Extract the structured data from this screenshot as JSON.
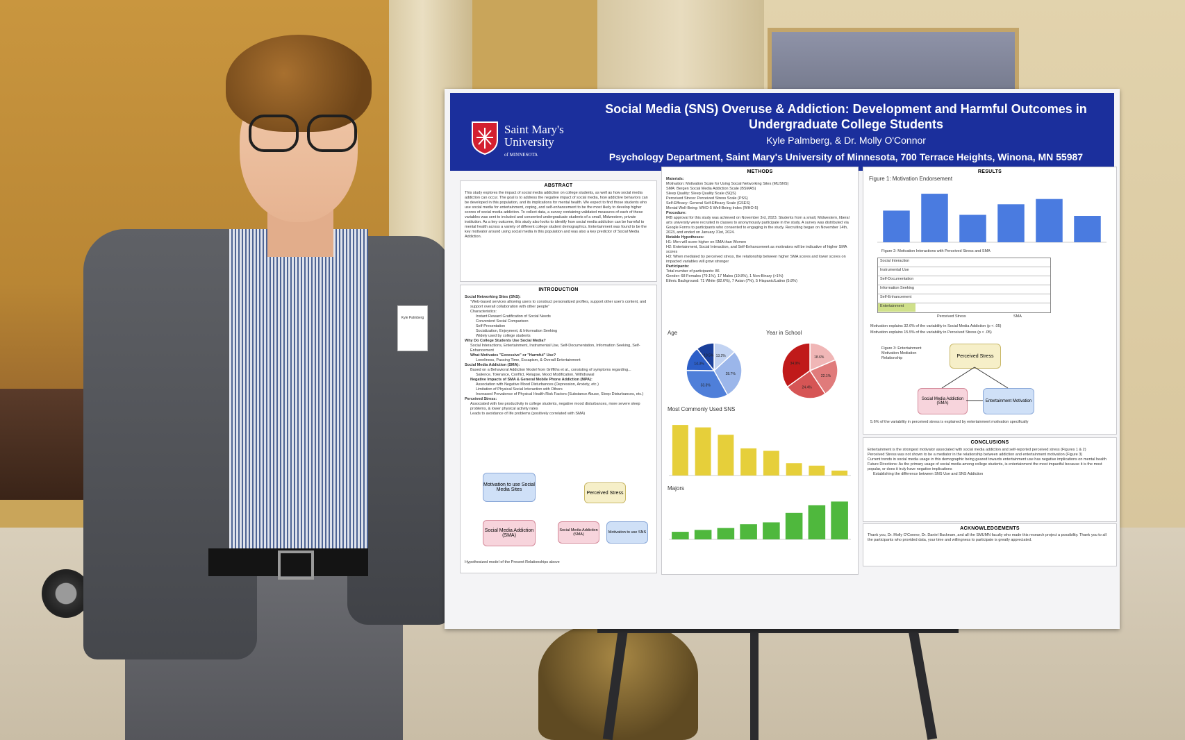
{
  "poster": {
    "title": "Social Media (SNS) Overuse & Addiction: Development and Harmful Outcomes in Undergraduate College Students",
    "authors": "Kyle Palmberg, & Dr. Molly O'Connor",
    "department": "Psychology Department, Saint Mary's University of Minnesota, 700 Terrace Heights, Winona, MN 55987",
    "logo_name_line1": "Saint Mary's",
    "logo_name_line2": "University",
    "logo_name_line3": "of MINNESOTA",
    "abstract": {
      "heading": "ABSTRACT",
      "text": "This study explores the impact of social media addiction on college students, as well as how social media addiction can occur. The goal is to address the negative impact of social media, how addictive behaviors can be developed in this population, and its implications for mental health. We expect to find those students who use social media for entertainment, coping, and self-enhancement to be the most likely to develop higher scores of social media addiction. To collect data, a survey containing validated measures of each of these variables was sent to included and consented undergraduate students of a small, Midwestern, private institution. As a key outcome, this study also looks to identify how social media addiction can be harmful to mental health across a variety of different college student demographics. Entertainment was found to be the key motivator around using social media in this population and was also a key predictor of Social Media Addiction."
    },
    "introduction": {
      "heading": "INTRODUCTION",
      "lines": [
        "Social Networking Sites (SNS):",
        "\"Web-based services allowing users to construct personalized profiles, support other user's content, and support overall collaboration with other people\"",
        "Characteristics:",
        "Instant Reward Gratification of Social Needs",
        "Convenient Social Comparison",
        "Self-Presentation",
        "Socialization, Enjoyment, & Information Seeking",
        "Widely used by college students",
        "Why Do College Students Use Social Media?",
        "Social Interactions, Entertainment, Instrumental Use, Self-Documentation, Information Seeking, Self-Enhancement",
        "What Motivates \"Excessive\" or \"Harmful\" Use?",
        "Loneliness, Passing Time, Escapism, & Overall Entertainment",
        "Social Media Addiction (SMA):",
        "Based on a Behavioral Addiction Model from Griffiths et al., consisting of symptoms regarding...",
        "Salience, Tolerance, Conflict, Relapse, Mood Modification, Withdrawal",
        "Negative Impacts of SMA & General Mobile Phone Addiction (MPA):",
        "Association with Negative Mood Disturbances (Depression, Anxiety, etc.)",
        "Limitation of Physical Social Interaction with Others",
        "Increased Prevalence of Physical Health Risk Factors (Substance Abuse, Sleep Disturbances, etc.)",
        "Perceived Stress:",
        "Associated with low productivity in college students, negative mood disturbances, more severe sleep problems, & lower physical activity rates",
        "Leads to avoidance of life problems (positively correlated with SMA)"
      ],
      "diagram": {
        "motivation": "Motivation to use Social Media Sites",
        "addiction": "Social Media Addiction (SMA)",
        "perceived_stress": "Perceived Stress",
        "sma": "Social Media Addiction (SMA)",
        "motivation_sns": "Motivation to use SNS"
      },
      "caption": "Hypothesized model of the Present Relationships above"
    },
    "methods": {
      "heading": "METHODS",
      "lines": [
        "Materials:",
        "Motivation: Motivation Scale for Using Social Networking Sites (MUSNS)",
        "SMA: Bergen Social Media Addiction Scale (BSMAS)",
        "Sleep Quality: Sleep Quality Scale (SQS)",
        "Perceived Stress: Perceived Stress Scale (PSS)",
        "Self-Efficacy: General Self-Efficacy Scale (GSES)",
        "Mental Well-Being: WHO-5 Well-Being Index (WHO-5)",
        "Procedure:",
        "IRB approval for this study was achieved on November 3rd, 2023. Students from a small, Midwestern, liberal arts university were recruited in classes to anonymously participate in the study. A survey was distributed via Google Forms to participants who consented to engaging in the study. Recruiting began on November 14th, 2023, and ended on January 31st, 2024.",
        "Notable Hypotheses:",
        "H1: Men will score higher on SMA than Women",
        "H2: Entertainment, Social Interaction, and Self-Enhancement as motivators will be indicative of higher SMA scores",
        "H3: When mediated by perceived stress, the relationship between higher SMA scores and lower scores on impacted variables will grow stronger",
        "Participants:",
        "Total number of participants: 86",
        "Gender: 68 Females (79.1%), 17 Males (19.8%), 1 Non-Binary (>1%)",
        "Ethnic Background: 71 White (82.6%), 7 Asian (7%), 5 Hispanic/Latino (5.8%)"
      ],
      "age_label": "Age",
      "school_label": "Year in School",
      "sns_label": "Most Commonly Used SNS",
      "majors_label": "Majors"
    },
    "results": {
      "heading": "RESULTS",
      "fig1": "Figure 1: Motivation Endorsement",
      "fig2": "Figure 2: Motivation Interactions with Perceived Stress and SMA",
      "note1": "Motivation explains 32.6% of the variability in Social Media Addiction (p < .05)",
      "note2": "Motivation explains 15.5% of the variability in Perceived Stress (p < .05)",
      "fig3_label": "Figure 3: Entertainment Motivation Mediation Relationship",
      "perceived_stress": "Perceived Stress",
      "sma": "Social Media Addiction (SMA)",
      "entertainment": "Entertainment Motivation",
      "note3": "5.6% of the variability in perceived stress is explained by entertainment motivation specifically",
      "table_rows": [
        "Social Interaction",
        "Instrumental Use",
        "Self-Documentation",
        "Information Seeking",
        "Self-Enhancement",
        "Entertainment"
      ],
      "brace_left": "Perceived Stress",
      "brace_right": "SMA"
    },
    "conclusions": {
      "heading": "CONCLUSIONS",
      "lines": [
        "Entertainment is the strongest motivator associated with social media addiction and self-reported perceived stress (Figures 1 & 2)",
        "Perceived Stress was not shown to be a mediator in the relationship between addiction and entertainment motivation (Figure 3)",
        "Current trends in social media usage in this demographic being geared towards entertainment use has negative implications on mental health",
        "Future Directions: As the primary usage of social media among college students, is entertainment the most impactful because it is the most popular, or does it truly have negative implications",
        "Establishing the difference between SNS Use and SNS Addiction"
      ]
    },
    "acknowledgements": {
      "heading": "ACKNOWLEDGEMENTS",
      "text": "Thank you, Dr. Molly O'Connor, Dr. Daniel Bucknam, and all the SMUMN faculty who made this research project a possibility. Thank you to all the participants who provided data, your time and willingness to participate is greatly appreciated."
    },
    "colors": {
      "banner": "#1b2f9c",
      "fig1_bars": "#4a7be0",
      "sns_bars": "#e6cf3a",
      "majors_bars": "#4fb83d",
      "logo_red": "#d42030"
    }
  },
  "name_tag": "Kyle Palmberg",
  "chart_data": [
    {
      "type": "bar",
      "title": "Figure 1: Motivation Endorsement",
      "values": [
        3.0,
        4.6,
        2.6,
        3.6,
        4.1,
        2.5
      ],
      "ylim": [
        0,
        5
      ]
    },
    {
      "type": "pie",
      "title": "Age",
      "values": [
        13.2,
        28.7,
        33.3,
        14.3,
        10.5
      ],
      "colors": [
        "#c2d3f2",
        "#9bb6ea",
        "#4f7fd9",
        "#2d5fc8",
        "#1a3f9a"
      ]
    },
    {
      "type": "pie",
      "title": "Year in School",
      "values": [
        18.6,
        22.1,
        24.4,
        34.9
      ],
      "colors": [
        "#f0b6b6",
        "#e07b7b",
        "#d65555",
        "#c01a1a"
      ]
    },
    {
      "type": "bar",
      "title": "Most Commonly Used SNS",
      "values": [
        82,
        78,
        66,
        44,
        40,
        20,
        16,
        8
      ],
      "ylim": [
        0,
        90
      ]
    },
    {
      "type": "bar",
      "title": "Majors",
      "values": [
        4,
        5,
        6,
        8,
        9,
        14,
        18,
        20
      ],
      "ylim": [
        0,
        22
      ]
    }
  ]
}
